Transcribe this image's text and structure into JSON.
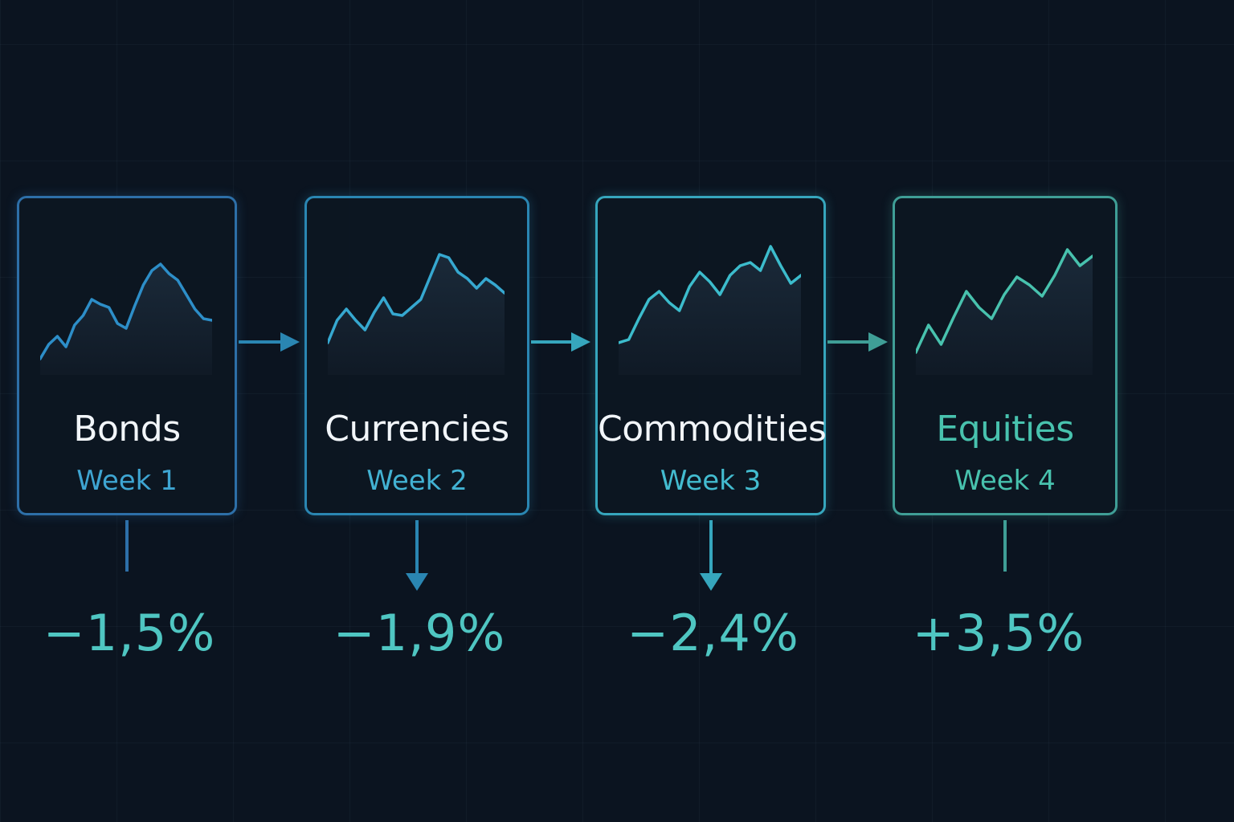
{
  "cards": [
    {
      "title": "Bonds",
      "week": "Week 1",
      "change": "−1,5%",
      "border": "#2d6fa8",
      "title_color": "#f2f6fa",
      "week_color": "#3ea5d2",
      "line": "#2d8ec8",
      "change_color": "#4fc6c2",
      "trend": [
        20,
        38,
        48,
        35,
        62,
        74,
        94,
        88,
        84,
        64,
        58,
        86,
        112,
        130,
        138,
        126,
        118,
        100,
        82,
        70,
        68
      ]
    },
    {
      "title": "Currencies",
      "week": "Week 2",
      "change": "−1,9%",
      "border": "#2a86b2",
      "title_color": "#f2f6fa",
      "week_color": "#42b2d3",
      "line": "#36a8d0",
      "change_color": "#4fc6c2",
      "trend": [
        40,
        68,
        82,
        68,
        56,
        78,
        96,
        76,
        74,
        84,
        94,
        122,
        150,
        146,
        128,
        120,
        108,
        120,
        112,
        102
      ]
    },
    {
      "title": "Commodities",
      "week": "Week 3",
      "change": "−2,4%",
      "border": "#36a6bd",
      "title_color": "#f2f6fa",
      "week_color": "#43bcd0",
      "line": "#3cbccc",
      "change_color": "#4fc6c2",
      "trend": [
        40,
        44,
        70,
        94,
        104,
        90,
        80,
        110,
        128,
        116,
        100,
        124,
        136,
        140,
        130,
        160,
        136,
        114,
        124
      ]
    },
    {
      "title": "Equities",
      "week": "Week 4",
      "change": "+3,5%",
      "border": "#3f9e96",
      "title_color": "#48c2ae",
      "week_color": "#48c2ae",
      "line": "#48c2ae",
      "change_color": "#4fc6c2",
      "trend": [
        28,
        62,
        38,
        72,
        104,
        84,
        70,
        100,
        122,
        112,
        98,
        124,
        156,
        136,
        148
      ]
    }
  ]
}
